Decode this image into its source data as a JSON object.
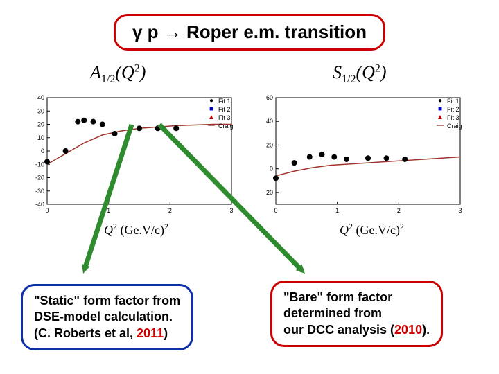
{
  "title": "γ p → Roper e.m.  transition",
  "left_formula_html": "A<sub>1/2</sub>(Q<sup>2</sup>)",
  "right_formula_html": "S<sub>1/2</sub>(Q<sup>2</sup>)",
  "xlabel_html": "<span class='it'>Q</span><sup>2</sup> (Ge.V/c)<sup>2</sup>",
  "left_chart": {
    "type": "scatter+line",
    "xlim": [
      0,
      3
    ],
    "ylim": [
      -40,
      40
    ],
    "xticks": [
      0,
      1,
      2,
      3
    ],
    "yticks": [
      -40,
      -30,
      -20,
      -10,
      0,
      10,
      20,
      30,
      40
    ],
    "background_color": "#ffffff",
    "frame_color": "#000000",
    "grid": false,
    "line": {
      "points": [
        [
          0,
          -10
        ],
        [
          0.3,
          -2
        ],
        [
          0.6,
          6
        ],
        [
          0.9,
          12
        ],
        [
          1.2,
          15
        ],
        [
          1.5,
          17
        ],
        [
          1.8,
          18
        ],
        [
          2.1,
          19
        ],
        [
          2.4,
          19.5
        ],
        [
          2.7,
          20
        ],
        [
          3,
          20
        ]
      ],
      "color": "#a0342c",
      "width": 1.5
    },
    "data": [
      {
        "x": 0.0,
        "y": -8,
        "color": "#000000",
        "marker": "circle",
        "size": 4
      },
      {
        "x": 0.3,
        "y": 0,
        "color": "#000000",
        "marker": "circle",
        "size": 4
      },
      {
        "x": 0.5,
        "y": 22,
        "color": "#000000",
        "marker": "circle",
        "size": 4
      },
      {
        "x": 0.6,
        "y": 23,
        "color": "#000000",
        "marker": "circle",
        "size": 4
      },
      {
        "x": 0.75,
        "y": 22,
        "color": "#000000",
        "marker": "circle",
        "size": 4
      },
      {
        "x": 0.9,
        "y": 20,
        "color": "#000000",
        "marker": "circle",
        "size": 4
      },
      {
        "x": 1.1,
        "y": 13,
        "color": "#000000",
        "marker": "circle",
        "size": 4
      },
      {
        "x": 1.5,
        "y": 17,
        "color": "#000000",
        "marker": "circle",
        "size": 4
      },
      {
        "x": 1.8,
        "y": 17,
        "color": "#000000",
        "marker": "circle",
        "size": 4
      },
      {
        "x": 2.1,
        "y": 17,
        "color": "#000000",
        "marker": "circle",
        "size": 4
      }
    ]
  },
  "right_chart": {
    "type": "scatter+line",
    "xlim": [
      0,
      3
    ],
    "ylim": [
      -30,
      60
    ],
    "xticks": [
      0,
      1,
      2,
      3
    ],
    "yticks": [
      -20,
      0,
      20,
      40,
      60
    ],
    "background_color": "#ffffff",
    "frame_color": "#000000",
    "grid": false,
    "line": {
      "points": [
        [
          0,
          -6
        ],
        [
          0.3,
          -2
        ],
        [
          0.6,
          1
        ],
        [
          0.9,
          3
        ],
        [
          1.2,
          4
        ],
        [
          1.5,
          5
        ],
        [
          1.8,
          6
        ],
        [
          2.1,
          7
        ],
        [
          2.4,
          8
        ],
        [
          2.7,
          9
        ],
        [
          3,
          10
        ]
      ],
      "color": "#a0342c",
      "width": 1.5
    },
    "data": [
      {
        "x": 0.0,
        "y": -8,
        "color": "#000000",
        "marker": "circle",
        "size": 4
      },
      {
        "x": 0.3,
        "y": 5,
        "color": "#000000",
        "marker": "circle",
        "size": 4
      },
      {
        "x": 0.55,
        "y": 10,
        "color": "#000000",
        "marker": "circle",
        "size": 4
      },
      {
        "x": 0.75,
        "y": 12,
        "color": "#000000",
        "marker": "circle",
        "size": 4
      },
      {
        "x": 0.95,
        "y": 10,
        "color": "#000000",
        "marker": "circle",
        "size": 4
      },
      {
        "x": 1.15,
        "y": 8,
        "color": "#000000",
        "marker": "circle",
        "size": 4
      },
      {
        "x": 1.5,
        "y": 9,
        "color": "#000000",
        "marker": "circle",
        "size": 4
      },
      {
        "x": 1.8,
        "y": 9,
        "color": "#000000",
        "marker": "circle",
        "size": 4
      },
      {
        "x": 2.1,
        "y": 8,
        "color": "#000000",
        "marker": "circle",
        "size": 4
      }
    ]
  },
  "legend": {
    "items": [
      {
        "label": "Fit 1",
        "marker": "circle",
        "color": "#000000"
      },
      {
        "label": "Fit 2",
        "marker": "square",
        "color": "#0000cc"
      },
      {
        "label": "Fit 3",
        "marker": "triangle",
        "color": "#cc0000"
      },
      {
        "label": "Craig",
        "marker": "line",
        "color": "#a0342c"
      }
    ]
  },
  "left_callout": {
    "lines": [
      "\"Static\" form factor from",
      "DSE-model calculation.",
      "(C. Roberts et al, "
    ],
    "year": "2011",
    "suffix": ")",
    "border_color": "#1030aa"
  },
  "right_callout": {
    "lines": [
      "\"Bare\" form factor",
      "determined from",
      "our DCC analysis ("
    ],
    "year": "2010",
    "suffix": ").",
    "border_color": "#cc0000"
  },
  "arrow": {
    "color": "#2e8b2e",
    "width": 7,
    "head_size": 14
  }
}
